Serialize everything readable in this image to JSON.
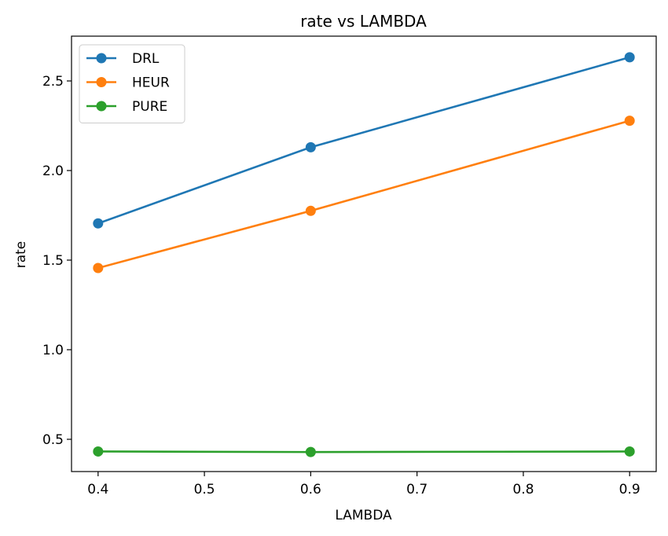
{
  "chart_data": {
    "type": "line",
    "title": "rate vs LAMBDA",
    "xlabel": "LAMBDA",
    "ylabel": "rate",
    "x": [
      0.4,
      0.6,
      0.9
    ],
    "xlim": [
      0.375,
      0.925
    ],
    "ylim": [
      0.32,
      2.75
    ],
    "xticks": [
      0.4,
      0.5,
      0.6,
      0.7,
      0.8,
      0.9
    ],
    "xtick_labels": [
      "0.4",
      "0.5",
      "0.6",
      "0.7",
      "0.8",
      "0.9"
    ],
    "yticks": [
      0.5,
      1.0,
      1.5,
      2.0,
      2.5
    ],
    "ytick_labels": [
      "0.5",
      "1.0",
      "1.5",
      "2.0",
      "2.5"
    ],
    "grid": false,
    "legend_position": "top-left",
    "markers": "circle",
    "series": [
      {
        "name": "DRL",
        "color": "#1f77b4",
        "values": [
          1.705,
          2.13,
          2.632
        ]
      },
      {
        "name": "HEUR",
        "color": "#ff7f0e",
        "values": [
          1.456,
          1.775,
          2.278
        ]
      },
      {
        "name": "PURE",
        "color": "#2ca02c",
        "values": [
          0.432,
          0.429,
          0.432
        ]
      }
    ]
  }
}
